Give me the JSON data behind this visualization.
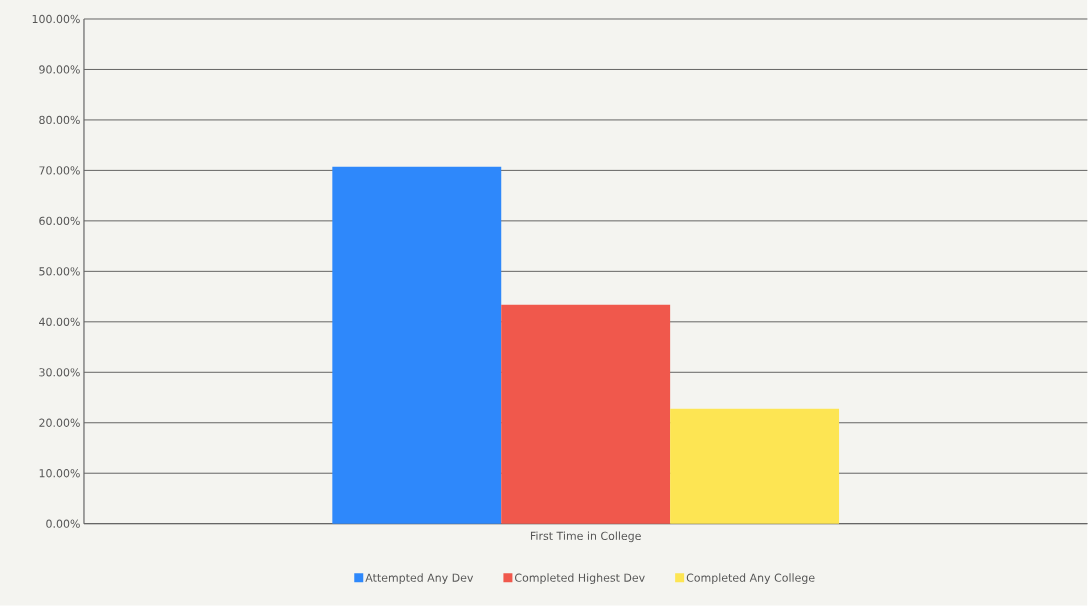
{
  "chart_data": {
    "type": "bar",
    "categories": [
      "First Time in College"
    ],
    "series": [
      {
        "name": "Attempted Any Dev",
        "color": "#2e88fb",
        "values": [
          70.7
        ]
      },
      {
        "name": "Completed Highest Dev",
        "color": "#f0584c",
        "values": [
          43.4
        ]
      },
      {
        "name": "Completed Any College",
        "color": "#fde553",
        "values": [
          22.8
        ]
      }
    ],
    "ylim": [
      0,
      100
    ],
    "yticks": [
      {
        "value": 0,
        "label": "0.00%"
      },
      {
        "value": 10,
        "label": "10.00%"
      },
      {
        "value": 20,
        "label": "20.00%"
      },
      {
        "value": 30,
        "label": "30.00%"
      },
      {
        "value": 40,
        "label": "40.00%"
      },
      {
        "value": 50,
        "label": "50.00%"
      },
      {
        "value": 60,
        "label": "60.00%"
      },
      {
        "value": 70,
        "label": "70.00%"
      },
      {
        "value": 80,
        "label": "80.00%"
      },
      {
        "value": 90,
        "label": "90.00%"
      },
      {
        "value": 100,
        "label": "100.00%"
      }
    ],
    "grid": "y",
    "legend": "bottom"
  }
}
